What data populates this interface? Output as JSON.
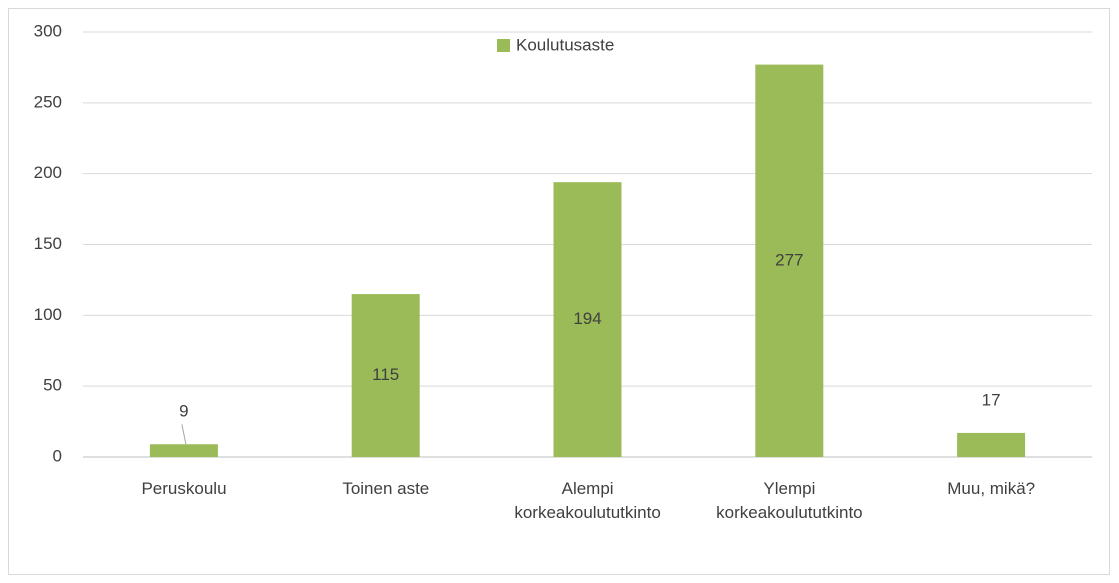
{
  "chart_data": {
    "type": "bar",
    "categories": [
      "Peruskoulu",
      "Toinen aste",
      "Alempi korkeakoulututkinto",
      "Ylempi korkeakoulututkinto",
      "Muu, mikä?"
    ],
    "series": [
      {
        "name": "Koulutusaste",
        "color": "#9bbb59",
        "values": [
          9,
          115,
          194,
          277,
          17
        ]
      }
    ],
    "ylim": [
      0,
      300
    ],
    "yticks": [
      0,
      50,
      100,
      150,
      200,
      250,
      300
    ],
    "grid": true,
    "legend": "top"
  }
}
